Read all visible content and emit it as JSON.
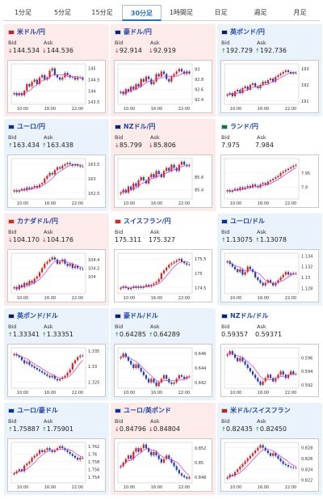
{
  "tabs": [
    {
      "label": "1分足",
      "active": false
    },
    {
      "label": "5分足",
      "active": false
    },
    {
      "label": "15分足",
      "active": false
    },
    {
      "label": "30分足",
      "active": true
    },
    {
      "label": "1時間足",
      "active": false
    },
    {
      "label": "日足",
      "active": false
    },
    {
      "label": "週足",
      "active": false
    },
    {
      "label": "月足",
      "active": false
    }
  ],
  "labels": {
    "bid": "Bid",
    "ask": "Ask"
  },
  "colors": {
    "up": "#1a8a2a",
    "down": "#d01818",
    "bullish": "#e02020",
    "bearish": "#2040c0",
    "ma": "#cc33cc",
    "bg_down": "#fdeaea",
    "bg_up": "#eaf3fc"
  },
  "pairs": [
    {
      "title": "米ドル/円",
      "flag": "us",
      "bid": "144.534",
      "ask": "144.536",
      "dir": "down",
      "chart_data": {
        "type": "candlestick",
        "x_ticks": [
          "10:00",
          "16:00",
          "22:00"
        ],
        "y_ticks": [
          "145",
          "144.5",
          "144",
          "143.5"
        ],
        "ylim": [
          143.4,
          145.2
        ],
        "closes": [
          143.9,
          143.8,
          143.9,
          143.8,
          144.0,
          144.3,
          144.2,
          144.4,
          144.5,
          144.3,
          144.6,
          144.7,
          144.5,
          144.6,
          144.9,
          145.0,
          144.7,
          144.6,
          144.5,
          144.6,
          144.8,
          144.7,
          144.6,
          144.6,
          144.5,
          144.6,
          144.6,
          144.5
        ]
      }
    },
    {
      "title": "豪ドル/円",
      "flag": "au",
      "bid": "92.914",
      "ask": "92.919",
      "dir": "down",
      "chart_data": {
        "type": "candlestick",
        "x_ticks": [
          "10:00",
          "16:00",
          "22:00"
        ],
        "y_ticks": [
          "93",
          "92.8",
          "92.6",
          "92.4"
        ],
        "ylim": [
          92.3,
          93.1
        ],
        "closes": [
          92.55,
          92.5,
          92.6,
          92.55,
          92.65,
          92.6,
          92.7,
          92.65,
          92.8,
          92.75,
          92.85,
          92.8,
          92.7,
          92.75,
          92.9,
          92.85,
          92.95,
          92.9,
          92.8,
          92.75,
          92.85,
          92.9,
          92.95,
          93.0,
          92.95,
          92.9,
          92.95,
          92.91
        ]
      }
    },
    {
      "title": "英ポンド/円",
      "flag": "gb",
      "bid": "192.729",
      "ask": "192.736",
      "dir": "up",
      "chart_data": {
        "type": "candlestick",
        "x_ticks": [
          "10:00",
          "16:00",
          "22:00"
        ],
        "y_ticks": [
          "193",
          "192",
          "191"
        ],
        "ylim": [
          190.8,
          193.3
        ],
        "closes": [
          191.4,
          191.5,
          191.3,
          191.6,
          191.7,
          191.5,
          191.8,
          191.9,
          191.7,
          192.0,
          192.1,
          191.9,
          191.8,
          192.0,
          192.2,
          192.1,
          192.3,
          192.4,
          192.2,
          192.5,
          192.6,
          192.7,
          192.8,
          192.9,
          192.8,
          192.7,
          192.75,
          192.73
        ]
      }
    },
    {
      "title": "ユーロ/円",
      "flag": "eu",
      "bid": "163.434",
      "ask": "163.438",
      "dir": "up",
      "chart_data": {
        "type": "candlestick",
        "x_ticks": [
          "10:00",
          "16:00",
          "22:00"
        ],
        "y_ticks": [
          "163.5",
          "163",
          "162.5"
        ],
        "ylim": [
          162.3,
          163.7
        ],
        "closes": [
          162.6,
          162.55,
          162.6,
          162.65,
          162.6,
          162.7,
          162.65,
          162.7,
          162.75,
          162.7,
          162.8,
          162.85,
          163.0,
          163.1,
          163.2,
          163.15,
          163.3,
          163.4,
          163.35,
          163.45,
          163.5,
          163.55,
          163.5,
          163.45,
          163.5,
          163.45,
          163.42,
          163.43
        ]
      }
    },
    {
      "title": "NZドル/円",
      "flag": "nz",
      "bid": "85.799",
      "ask": "85.806",
      "dir": "down",
      "chart_data": {
        "type": "candlestick",
        "x_ticks": [
          "10:00",
          "16:00",
          "22:00"
        ],
        "y_ticks": [
          "85.6",
          "85.4"
        ],
        "ylim": [
          85.25,
          85.9
        ],
        "closes": [
          85.35,
          85.4,
          85.35,
          85.45,
          85.4,
          85.5,
          85.45,
          85.55,
          85.6,
          85.55,
          85.5,
          85.6,
          85.65,
          85.6,
          85.7,
          85.65,
          85.6,
          85.7,
          85.75,
          85.7,
          85.8,
          85.75,
          85.7,
          85.8,
          85.85,
          85.8,
          85.78,
          85.8
        ]
      }
    },
    {
      "title": "ランド/円",
      "flag": "za",
      "bid": "7.975",
      "ask": "7.984",
      "dir": "none",
      "chart_data": {
        "type": "candlestick",
        "x_ticks": [
          "10:00",
          "16:00",
          "22:00"
        ],
        "y_ticks": [
          "7.95",
          "7.9"
        ],
        "ylim": [
          7.86,
          8.0
        ],
        "closes": [
          7.89,
          7.885,
          7.89,
          7.895,
          7.89,
          7.9,
          7.895,
          7.9,
          7.905,
          7.9,
          7.91,
          7.905,
          7.9,
          7.91,
          7.915,
          7.91,
          7.92,
          7.925,
          7.93,
          7.935,
          7.94,
          7.95,
          7.955,
          7.96,
          7.965,
          7.97,
          7.975,
          7.978
        ]
      }
    },
    {
      "title": "カナダドル/円",
      "flag": "ca",
      "bid": "104.170",
      "ask": "104.176",
      "dir": "down",
      "chart_data": {
        "type": "candlestick",
        "x_ticks": [
          "10:00",
          "16:00",
          "22:00"
        ],
        "y_ticks": [
          "104.4",
          "104.2",
          "104"
        ],
        "ylim": [
          103.6,
          104.55
        ],
        "closes": [
          103.75,
          103.7,
          103.8,
          103.75,
          103.85,
          103.8,
          103.9,
          103.85,
          103.95,
          104.0,
          104.1,
          104.2,
          104.3,
          104.35,
          104.4,
          104.45,
          104.4,
          104.3,
          104.35,
          104.4,
          104.3,
          104.25,
          104.3,
          104.2,
          104.25,
          104.2,
          104.18,
          104.17
        ]
      }
    },
    {
      "title": "スイスフラン/円",
      "flag": "ch",
      "bid": "175.311",
      "ask": "175.327",
      "dir": "none",
      "chart_data": {
        "type": "candlestick",
        "x_ticks": [
          "10:00",
          "16:00",
          "22:00"
        ],
        "y_ticks": [
          "175.5",
          "175",
          "174.5"
        ],
        "ylim": [
          174.3,
          175.7
        ],
        "closes": [
          174.5,
          174.55,
          174.5,
          174.45,
          174.5,
          174.55,
          174.5,
          174.55,
          174.5,
          174.55,
          174.6,
          174.55,
          174.6,
          174.65,
          174.7,
          174.8,
          175.0,
          175.1,
          175.2,
          175.3,
          175.35,
          175.4,
          175.45,
          175.5,
          175.4,
          175.35,
          175.3,
          175.31
        ]
      }
    },
    {
      "title": "ユーロ/ドル",
      "flag": "eu-us",
      "bid": "1.13075",
      "ask": "1.13078",
      "dir": "up",
      "chart_data": {
        "type": "candlestick",
        "x_ticks": [
          "10:00",
          "16:00",
          "22:00"
        ],
        "y_ticks": [
          "1.134",
          "1.132",
          "1.13",
          "1.128"
        ],
        "ylim": [
          1.127,
          1.1345
        ],
        "closes": [
          1.133,
          1.1325,
          1.132,
          1.1315,
          1.131,
          1.1315,
          1.1305,
          1.131,
          1.132,
          1.1315,
          1.131,
          1.13,
          1.1295,
          1.129,
          1.1285,
          1.129,
          1.1295,
          1.129,
          1.1285,
          1.129,
          1.1295,
          1.13,
          1.1305,
          1.131,
          1.1305,
          1.1308,
          1.1307,
          1.1308
        ]
      }
    },
    {
      "title": "英ポンド/ドル",
      "flag": "gb-us",
      "bid": "1.33341",
      "ask": "1.33351",
      "dir": "up",
      "chart_data": {
        "type": "candlestick",
        "x_ticks": [
          "10:00",
          "16:00",
          "22:00"
        ],
        "y_ticks": [
          "1.335",
          "1.33",
          "1.325"
        ],
        "ylim": [
          1.323,
          1.336
        ],
        "closes": [
          1.334,
          1.3335,
          1.333,
          1.332,
          1.331,
          1.3315,
          1.3305,
          1.33,
          1.3295,
          1.329,
          1.3285,
          1.328,
          1.3275,
          1.327,
          1.3265,
          1.327,
          1.326,
          1.3255,
          1.326,
          1.3265,
          1.327,
          1.328,
          1.329,
          1.331,
          1.332,
          1.333,
          1.3335,
          1.3334
        ]
      }
    },
    {
      "title": "豪ドル/ドル",
      "flag": "au-us",
      "bid": "0.64285",
      "ask": "0.64289",
      "dir": "up",
      "chart_data": {
        "type": "candlestick",
        "x_ticks": [
          "10:00",
          "16:00",
          "22:00"
        ],
        "y_ticks": [
          "0.646",
          "0.644",
          "0.642"
        ],
        "ylim": [
          0.6412,
          0.6468
        ],
        "closes": [
          0.6455,
          0.646,
          0.6455,
          0.645,
          0.6445,
          0.644,
          0.6445,
          0.644,
          0.6435,
          0.643,
          0.6425,
          0.642,
          0.6425,
          0.642,
          0.6415,
          0.642,
          0.6425,
          0.643,
          0.6425,
          0.642,
          0.6418,
          0.642,
          0.6425,
          0.643,
          0.6428,
          0.6425,
          0.6428,
          0.64285
        ]
      }
    },
    {
      "title": "NZドル/ドル",
      "flag": "nz-us",
      "bid": "0.59357",
      "ask": "0.59371",
      "dir": "none",
      "chart_data": {
        "type": "candlestick",
        "x_ticks": [
          "10:00",
          "16:00",
          "22:00"
        ],
        "y_ticks": [
          "0.596",
          "0.594",
          "0.592"
        ],
        "ylim": [
          0.5915,
          0.5975
        ],
        "closes": [
          0.5965,
          0.597,
          0.5965,
          0.596,
          0.5955,
          0.596,
          0.5955,
          0.595,
          0.5945,
          0.594,
          0.5935,
          0.593,
          0.5925,
          0.592,
          0.5925,
          0.593,
          0.5935,
          0.593,
          0.5925,
          0.593,
          0.5935,
          0.594,
          0.5935,
          0.593,
          0.5935,
          0.594,
          0.5936,
          0.5936
        ]
      }
    },
    {
      "title": "ユーロ/豪ドル",
      "flag": "eu-au",
      "bid": "1.75887",
      "ask": "1.75901",
      "dir": "up",
      "chart_data": {
        "type": "candlestick",
        "x_ticks": [
          "10:00",
          "16:00",
          "22:00"
        ],
        "y_ticks": [
          "1.762",
          "1.76",
          "1.758",
          "1.756",
          "1.754"
        ],
        "ylim": [
          1.7525,
          1.763
        ],
        "closes": [
          1.755,
          1.7555,
          1.756,
          1.7555,
          1.757,
          1.7575,
          1.758,
          1.759,
          1.7595,
          1.76,
          1.761,
          1.7605,
          1.761,
          1.7615,
          1.761,
          1.7605,
          1.761,
          1.7615,
          1.762,
          1.7615,
          1.761,
          1.7605,
          1.76,
          1.7595,
          1.759,
          1.7585,
          1.759,
          1.7589
        ]
      }
    },
    {
      "title": "ユーロ/英ポンド",
      "flag": "eu-gb",
      "bid": "0.84796",
      "ask": "0.84804",
      "dir": "down",
      "chart_data": {
        "type": "candlestick",
        "x_ticks": [
          "10:00",
          "16:00",
          "22:00"
        ],
        "y_ticks": [
          "0.852",
          "0.85",
          "0.848"
        ],
        "ylim": [
          0.8472,
          0.8528
        ],
        "closes": [
          0.8495,
          0.85,
          0.8505,
          0.851,
          0.8505,
          0.8515,
          0.852,
          0.8515,
          0.852,
          0.8525,
          0.852,
          0.8515,
          0.851,
          0.8515,
          0.851,
          0.8505,
          0.85,
          0.8505,
          0.851,
          0.8505,
          0.85,
          0.8495,
          0.849,
          0.8485,
          0.8482,
          0.848,
          0.8478,
          0.848
        ]
      }
    },
    {
      "title": "米ドル/スイスフラン",
      "flag": "us-ch",
      "bid": "0.82435",
      "ask": "0.82450",
      "dir": "up",
      "chart_data": {
        "type": "candlestick",
        "x_ticks": [
          "10:00",
          "16:00",
          "22:00"
        ],
        "y_ticks": [
          "0.828",
          "0.826",
          "0.824",
          "0.822"
        ],
        "ylim": [
          0.8215,
          0.829
        ],
        "closes": [
          0.8225,
          0.823,
          0.8228,
          0.8235,
          0.824,
          0.8245,
          0.825,
          0.8255,
          0.826,
          0.8265,
          0.827,
          0.8275,
          0.828,
          0.8285,
          0.828,
          0.8275,
          0.827,
          0.8265,
          0.827,
          0.8265,
          0.826,
          0.8255,
          0.825,
          0.8248,
          0.8245,
          0.8244,
          0.8243,
          0.82435
        ]
      }
    }
  ]
}
